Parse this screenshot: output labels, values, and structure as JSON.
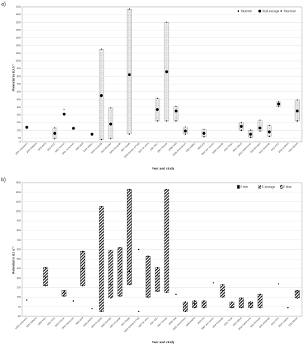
{
  "figure_label": "",
  "chart_data": [
    {
      "panel": "a)",
      "type": "range",
      "xlabel": "Year and study",
      "ylabel": "Potential in EJ a⁻¹",
      "ylim": [
        0,
        1750
      ],
      "yticks": [
        0,
        50,
        150,
        250,
        350,
        450,
        550,
        650,
        750,
        850,
        950,
        1050,
        1150,
        1250,
        1350,
        1450,
        1550,
        1650,
        1750
      ],
      "grid": true,
      "legend_position": "top-right",
      "legend": [
        "Total min",
        "Total average",
        "Total max"
      ],
      "categories": [
        "1993 Johansson",
        "1995 Williams",
        "2000 WEA",
        "2001 IPCC",
        "2001 Fischer",
        "2001 Yamamoto",
        "2003 Wolf",
        "2003 WBGU",
        "2003 Hoogwijk",
        "2003 Berndes",
        "2004 Hoogwijk",
        "2007 Stulda",
        "2006 Smeets & Faaij",
        "2007 de Vries",
        "2007 IEEJ",
        "2007 Smeets",
        "2008 Field",
        "2008 Greenpeace",
        "2008 WBGU",
        "2009 Erb",
        "2009 Van Vuuren",
        "2009 Hoogwijk",
        "2010 Thrän",
        "2010 Haberl",
        "2011 Haberl et al.",
        "2011 Beringer",
        "2011 Abramski",
        "2012 IPCC",
        "2015 Leidens",
        "2016 IRENA"
      ],
      "series": [
        {
          "name": "Total min",
          "values": [
            null,
            null,
            null,
            40,
            null,
            null,
            null,
            null,
            30,
            40,
            null,
            100,
            null,
            null,
            270,
            270,
            270,
            100,
            null,
            65,
            null,
            null,
            null,
            150,
            60,
            140,
            70,
            460,
            null,
            270
          ]
        },
        {
          "name": "Total average",
          "values": [
            190,
            null,
            null,
            110,
            360,
            175,
            null,
            100,
            600,
            230,
            null,
            870,
            null,
            null,
            420,
            910,
            400,
            140,
            null,
            110,
            null,
            null,
            null,
            200,
            100,
            180,
            130,
            490,
            null,
            400
          ]
        },
        {
          "name": "Total max",
          "values": [
            null,
            null,
            null,
            180,
            420,
            null,
            null,
            null,
            1200,
            440,
            null,
            1720,
            null,
            null,
            560,
            1550,
            460,
            190,
            null,
            160,
            null,
            null,
            null,
            250,
            150,
            280,
            210,
            520,
            null,
            540
          ]
        }
      ]
    },
    {
      "panel": "b)",
      "type": "range",
      "xlabel": "Year and study",
      "ylabel": "Potential in EJ a⁻¹",
      "ylim": [
        0,
        1350
      ],
      "yticks": [
        -50,
        50,
        150,
        250,
        350,
        450,
        550,
        650,
        750,
        850,
        950,
        1050,
        1150,
        1250,
        1350
      ],
      "grid": true,
      "legend_position": "top-right",
      "legend": [
        "E min",
        "E average",
        "E Max"
      ],
      "categories": [
        "1993 Johansson",
        "1995 Williams",
        "2000 WEA",
        "2001 IPCC",
        "2001 Fischer",
        "2001 Yamamoto",
        "2003 Wolf",
        "2003 WBGU",
        "2003 Hoogwijk",
        "2003 Berndes",
        "2004 Hoogwijk",
        "2007 Stulda",
        "2006 Smeets & Faaij",
        "2007 de Vries",
        "2007 IEEJ",
        "2007 Smeets",
        "2008 Field",
        "2008 Greenpeace",
        "2008 WBGU",
        "2009 Erb",
        "2009 Van Vuuren",
        "2009 Hoogwijk",
        "2010 Thrän",
        "2010 Haberl",
        "2011 Haberl et al.",
        "2011 Beringer",
        "2011 Abramski",
        "2012 IPCC",
        "2015 Leidens",
        "2016 IRENA"
      ],
      "series": [
        {
          "name": "E min",
          "values": [
            120,
            null,
            270,
            null,
            160,
            110,
            270,
            30,
            0,
            140,
            160,
            280,
            0,
            150,
            210,
            200,
            180,
            0,
            40,
            40,
            null,
            150,
            40,
            40,
            40,
            40,
            null,
            290,
            40,
            140
          ]
        },
        {
          "name": "E average",
          "values": [
            null,
            null,
            360,
            null,
            200,
            null,
            450,
            null,
            500,
            280,
            420,
            420,
            650,
            380,
            380,
            800,
            null,
            60,
            80,
            80,
            300,
            220,
            60,
            100,
            80,
            110,
            null,
            null,
            null,
            200
          ]
        },
        {
          "name": "E Max",
          "values": [
            null,
            null,
            460,
            null,
            220,
            null,
            630,
            null,
            1100,
            640,
            670,
            1280,
            null,
            580,
            460,
            1280,
            null,
            100,
            110,
            110,
            null,
            280,
            100,
            140,
            100,
            180,
            null,
            null,
            null,
            220
          ]
        }
      ]
    }
  ]
}
